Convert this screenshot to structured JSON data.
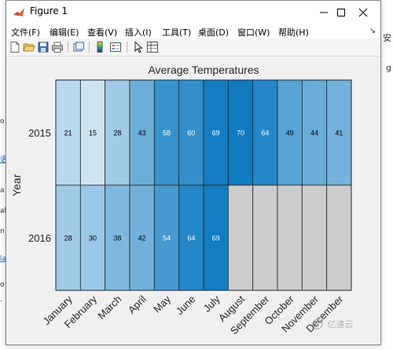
{
  "window": {
    "title": "Figure 1",
    "icon": "matlab-icon"
  },
  "window_controls": [
    "minimize-icon",
    "maximize-icon",
    "close-icon"
  ],
  "menu": [
    {
      "id": "file",
      "label": "文件(F)"
    },
    {
      "id": "edit",
      "label": "编辑(E)"
    },
    {
      "id": "view",
      "label": "查看(V)"
    },
    {
      "id": "insert",
      "label": "插入(I)"
    },
    {
      "id": "tools",
      "label": "工具(T)"
    },
    {
      "id": "desktop",
      "label": "桌面(D)"
    },
    {
      "id": "window",
      "label": "窗口(W)"
    },
    {
      "id": "help",
      "label": "帮助(H)"
    }
  ],
  "toolbar": [
    "new-figure-icon",
    "open-file-icon",
    "save-icon",
    "print-icon",
    "link-plot-icon",
    "insert-colorbar-icon",
    "insert-legend-icon",
    "edit-plot-pointer-icon",
    "property-inspector-icon"
  ],
  "colors": {
    "missing": "#cccccc",
    "colormap_low": "#ffffff",
    "colormap_high": "#0072bd",
    "dark_text": "#000000",
    "light_text": "#ffffff"
  },
  "chart_data": {
    "type": "heatmap",
    "title": "Average Temperatures",
    "xlabel": "",
    "ylabel": "Year",
    "x_categories": [
      "January",
      "February",
      "March",
      "April",
      "May",
      "June",
      "July",
      "August",
      "September",
      "October",
      "November",
      "December"
    ],
    "y_categories": [
      "2015",
      "2016"
    ],
    "values": [
      [
        21,
        15,
        28,
        43,
        58,
        60,
        69,
        70,
        64,
        49,
        44,
        41
      ],
      [
        28,
        30,
        38,
        42,
        54,
        64,
        69,
        null,
        null,
        null,
        null,
        null
      ]
    ],
    "color_limits": [
      0,
      75
    ],
    "missing_color": "#cccccc",
    "cell_labels": true
  },
  "watermark": {
    "text": "亿速云"
  }
}
